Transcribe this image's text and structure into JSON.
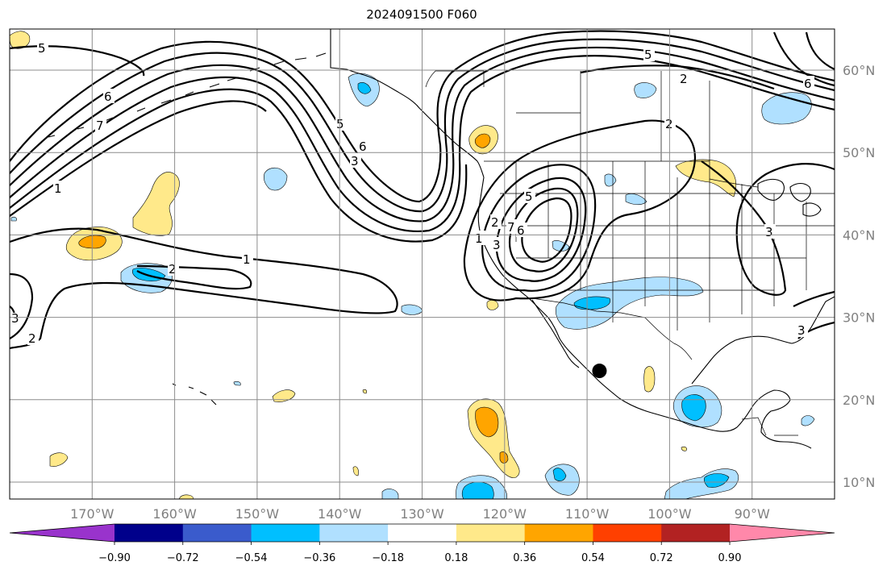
{
  "title": "2024091500 F060",
  "lon_ticks": [
    "170°W",
    "160°W",
    "150°W",
    "140°W",
    "130°W",
    "120°W",
    "110°W",
    "100°W",
    "90°W"
  ],
  "lat_ticks": [
    "60°N",
    "50°N",
    "40°N",
    "30°N",
    "20°N",
    "10°N"
  ],
  "colorbar": {
    "colors": [
      "#9933cc",
      "#00008b",
      "#3a5bcc",
      "#00bfff",
      "#b0e0ff",
      "#ffffff",
      "#ffe98a",
      "#ffa500",
      "#ff4000",
      "#b22222",
      "#ff88aa"
    ],
    "labels": [
      "−0.90",
      "−0.72",
      "−0.54",
      "−0.36",
      "−0.18",
      "0.18",
      "0.36",
      "0.54",
      "0.72",
      "0.90"
    ]
  },
  "contour_labels": [
    "5",
    "6",
    "7",
    "1",
    "2",
    "1",
    "2",
    "2",
    "3",
    "5",
    "6",
    "5",
    "2",
    "3",
    "6",
    "2",
    "3",
    "5",
    "7",
    "1",
    "2",
    "6",
    "3",
    "3"
  ],
  "marker": {
    "lon": -108.5,
    "lat": 23.5,
    "color": "#000000"
  },
  "colors": {
    "positive_light": "#ffe98a",
    "positive_mid": "#ffa500",
    "negative_light": "#b0e0ff",
    "negative_mid": "#00bfff",
    "grid": "#8c8c8c"
  }
}
